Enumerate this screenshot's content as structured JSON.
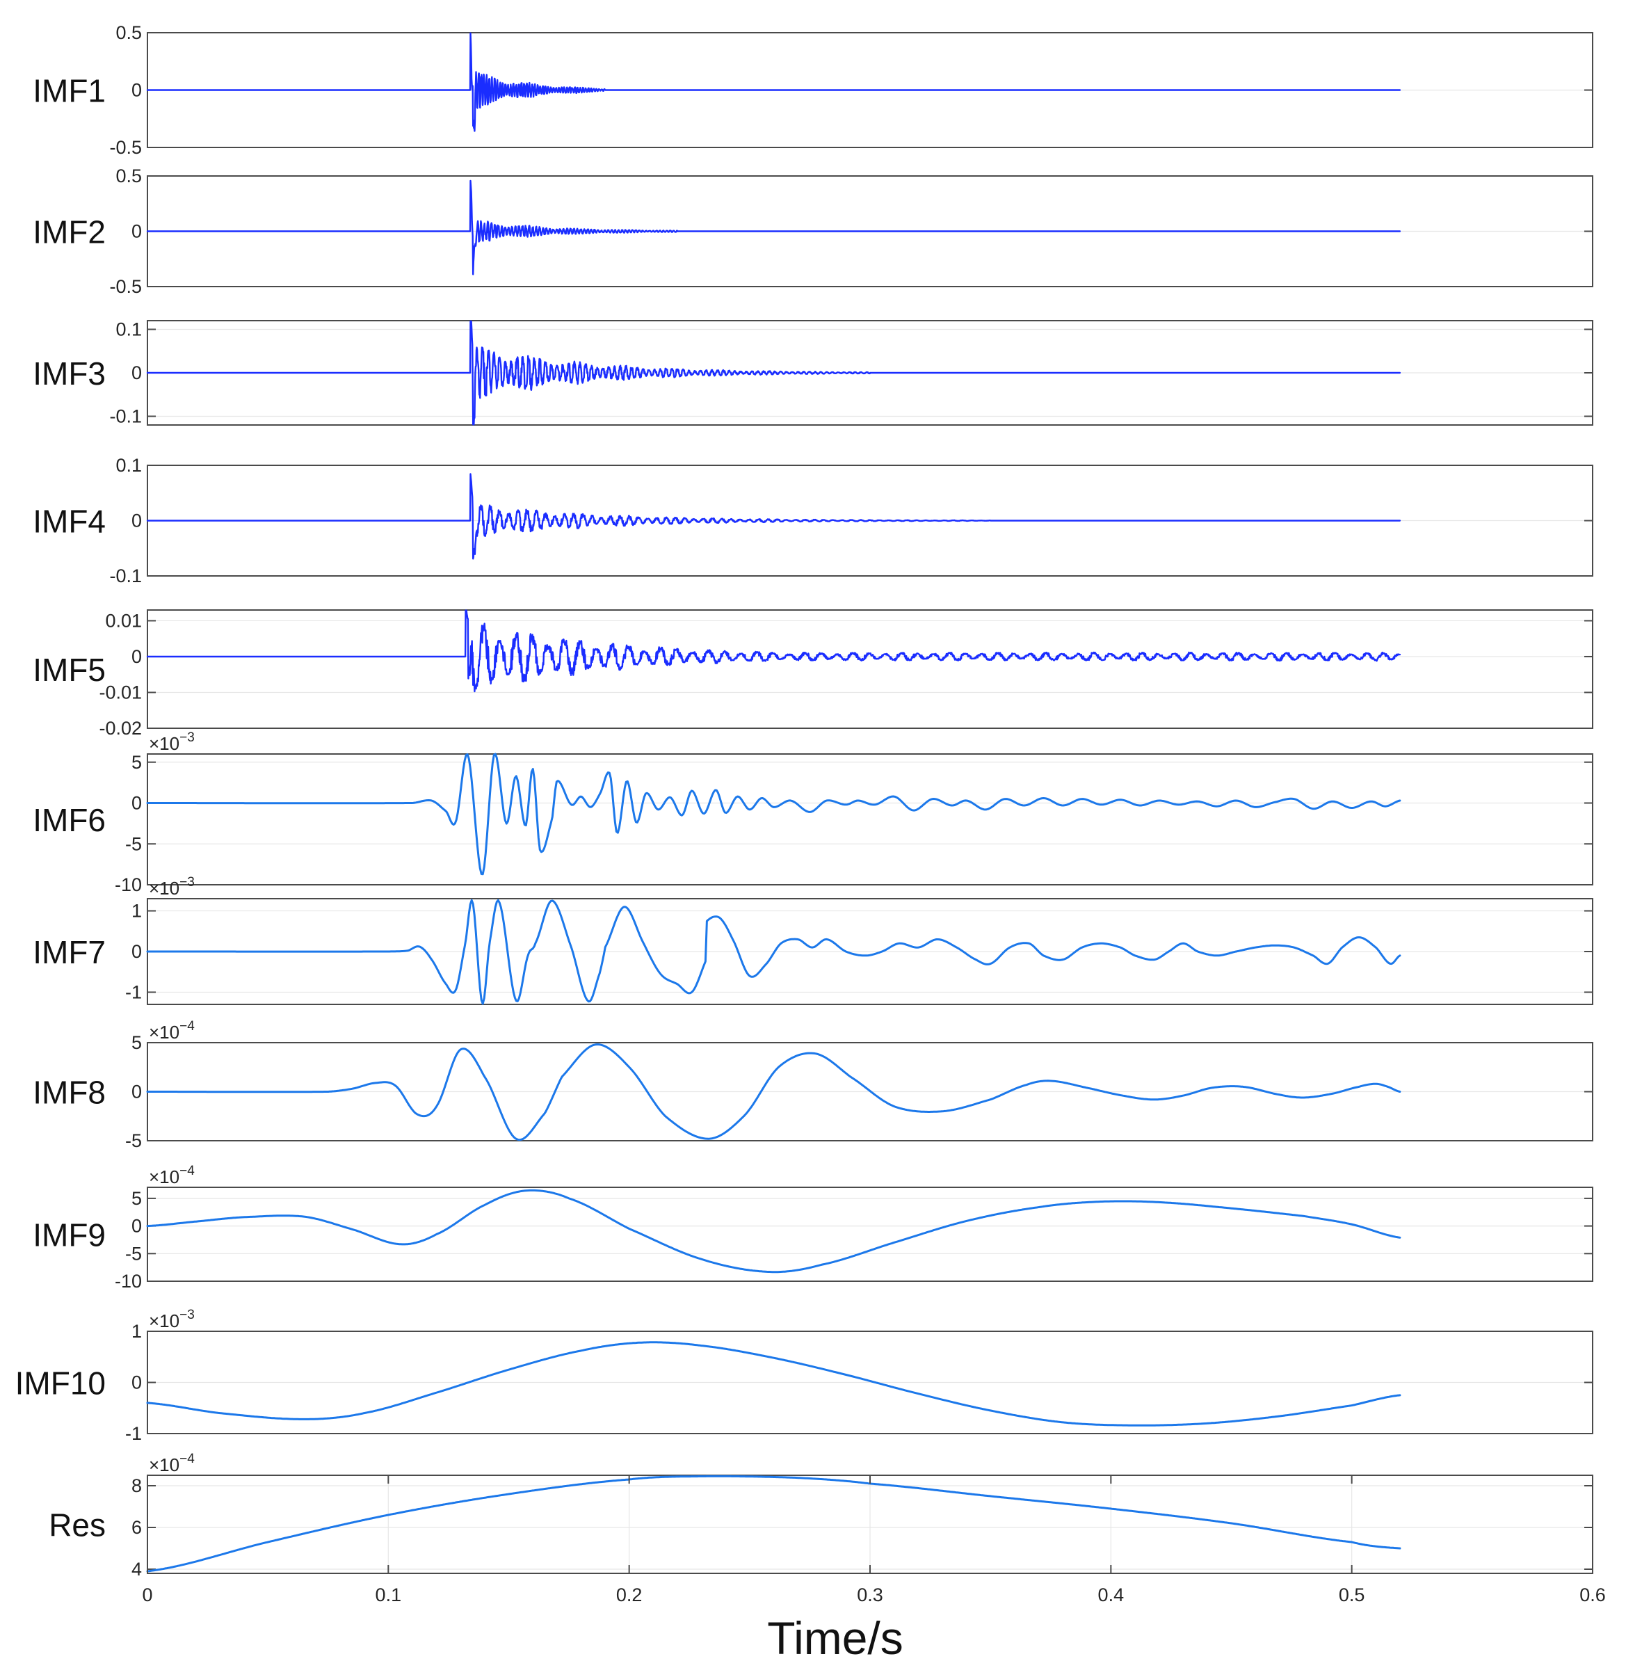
{
  "chart_data": {
    "type": "line",
    "x_unit_label": "Time/s",
    "xlim": [
      0,
      0.6
    ],
    "x_ticks": [
      "0",
      "0.1",
      "0.2",
      "0.3",
      "0.4",
      "0.5",
      "0.6"
    ],
    "x_tick_values": [
      0,
      0.1,
      0.2,
      0.3,
      0.4,
      0.5,
      0.6
    ],
    "colors": {
      "dense_trace": "#1a2dff",
      "smooth_trace": "#1c78ea",
      "frame": "#4a4a4a",
      "grid": "#e6e6e6"
    },
    "panels": [
      {
        "name": "IMF1",
        "ylim": [
          -0.5,
          0.5
        ],
        "yticks": [
          0.5,
          0,
          -0.5
        ],
        "ytick_labels": [
          "0.5",
          "0",
          "-0.5"
        ],
        "multiplier": "",
        "style": "dense",
        "signal": {
          "kind": "burst",
          "onset": 0.134,
          "decay": 0.022,
          "amp": 0.2,
          "freq": 900,
          "spike": 0.45,
          "spike_neg": -0.42,
          "tail_end": 0.19
        },
        "peak_at": 0.134,
        "peak_value": 0.45,
        "trough_value": -0.42
      },
      {
        "name": "IMF2",
        "ylim": [
          -0.5,
          0.5
        ],
        "yticks": [
          0.5,
          0,
          -0.5
        ],
        "ytick_labels": [
          "0.5",
          "0",
          "-0.5"
        ],
        "multiplier": "",
        "style": "dense",
        "signal": {
          "kind": "burst",
          "onset": 0.134,
          "decay": 0.03,
          "amp": 0.12,
          "freq": 700,
          "spike": 0.42,
          "spike_neg": -0.38,
          "tail_end": 0.22
        },
        "peak_at": 0.134,
        "peak_value": 0.42,
        "trough_value": -0.38
      },
      {
        "name": "IMF3",
        "ylim": [
          -0.12,
          0.12
        ],
        "yticks": [
          0.1,
          0,
          -0.1
        ],
        "ytick_labels": [
          "0.1",
          "0",
          "-0.1"
        ],
        "multiplier": "",
        "style": "dense",
        "signal": {
          "kind": "burst",
          "onset": 0.134,
          "decay": 0.045,
          "amp": 0.07,
          "freq": 420,
          "spike": 0.115,
          "spike_neg": -0.11,
          "tail_end": 0.3
        },
        "peak_at": 0.138,
        "peak_value": 0.115,
        "trough_value": -0.11
      },
      {
        "name": "IMF4",
        "ylim": [
          -0.1,
          0.1
        ],
        "yticks": [
          0.1,
          0,
          -0.1
        ],
        "ytick_labels": [
          "0.1",
          "0",
          "-0.1"
        ],
        "multiplier": "",
        "style": "dense",
        "signal": {
          "kind": "burst",
          "onset": 0.134,
          "decay": 0.05,
          "amp": 0.035,
          "freq": 260,
          "spike": 0.07,
          "spike_neg": -0.09,
          "tail_end": 0.35
        },
        "peak_at": 0.136,
        "peak_value": 0.07,
        "trough_value": -0.09
      },
      {
        "name": "IMF5",
        "ylim": [
          -0.02,
          0.013
        ],
        "yticks": [
          0.01,
          0,
          -0.01,
          -0.02
        ],
        "ytick_labels": [
          "0.01",
          "0",
          "-0.01",
          "-0.02"
        ],
        "multiplier": "",
        "style": "dense",
        "signal": {
          "kind": "burst",
          "onset": 0.132,
          "decay": 0.06,
          "amp": 0.011,
          "freq": 150,
          "spike": 0.013,
          "spike_neg": -0.015,
          "tail_end": 0.52,
          "floor": 0.0012
        },
        "peak_at": 0.134,
        "peak_value": 0.013,
        "trough_value": -0.015
      },
      {
        "name": "IMF6",
        "ylim": [
          -10,
          6
        ],
        "yticks": [
          5,
          0,
          -5,
          -10
        ],
        "ytick_labels": [
          "5",
          "0",
          "-5",
          "-10"
        ],
        "multiplier": "10^-3",
        "style": "smooth",
        "points": [
          [
            0,
            0
          ],
          [
            0.11,
            0
          ],
          [
            0.118,
            0.3
          ],
          [
            0.124,
            -1
          ],
          [
            0.128,
            -2.3
          ],
          [
            0.133,
            5.9
          ],
          [
            0.139,
            -8.8
          ],
          [
            0.144,
            6
          ],
          [
            0.149,
            -2.5
          ],
          [
            0.153,
            3.3
          ],
          [
            0.157,
            -2.8
          ],
          [
            0.16,
            4.2
          ],
          [
            0.163,
            -5.8
          ],
          [
            0.168,
            -2
          ],
          [
            0.17,
            2.7
          ],
          [
            0.176,
            -0.2
          ],
          [
            0.18,
            0.8
          ],
          [
            0.184,
            -0.5
          ],
          [
            0.188,
            1.2
          ],
          [
            0.192,
            3.6
          ],
          [
            0.195,
            -3.7
          ],
          [
            0.199,
            2.7
          ],
          [
            0.203,
            -2.4
          ],
          [
            0.207,
            1.2
          ],
          [
            0.212,
            -0.8
          ],
          [
            0.217,
            0.7
          ],
          [
            0.222,
            -1.5
          ],
          [
            0.226,
            1.5
          ],
          [
            0.231,
            -1.3
          ],
          [
            0.236,
            1.6
          ],
          [
            0.24,
            -1.2
          ],
          [
            0.245,
            0.8
          ],
          [
            0.25,
            -0.8
          ],
          [
            0.255,
            0.6
          ],
          [
            0.26,
            -0.5
          ],
          [
            0.267,
            0.3
          ],
          [
            0.275,
            -1.1
          ],
          [
            0.282,
            0.3
          ],
          [
            0.29,
            -0.2
          ],
          [
            0.295,
            0.3
          ],
          [
            0.302,
            -0.2
          ],
          [
            0.31,
            0.8
          ],
          [
            0.318,
            -0.9
          ],
          [
            0.326,
            0.5
          ],
          [
            0.334,
            -0.3
          ],
          [
            0.34,
            0.3
          ],
          [
            0.348,
            -0.8
          ],
          [
            0.356,
            0.5
          ],
          [
            0.364,
            -0.3
          ],
          [
            0.372,
            0.6
          ],
          [
            0.38,
            -0.3
          ],
          [
            0.388,
            0.5
          ],
          [
            0.396,
            -0.2
          ],
          [
            0.404,
            0.4
          ],
          [
            0.412,
            -0.3
          ],
          [
            0.42,
            0.3
          ],
          [
            0.428,
            -0.2
          ],
          [
            0.436,
            0.2
          ],
          [
            0.444,
            -0.4
          ],
          [
            0.452,
            0.3
          ],
          [
            0.46,
            -0.5
          ],
          [
            0.468,
            0.1
          ],
          [
            0.476,
            0.5
          ],
          [
            0.484,
            -0.7
          ],
          [
            0.492,
            0.2
          ],
          [
            0.5,
            -0.6
          ],
          [
            0.508,
            0.2
          ],
          [
            0.514,
            -0.4
          ],
          [
            0.52,
            0.3
          ]
        ]
      },
      {
        "name": "IMF7",
        "ylim": [
          -1.3,
          1.3
        ],
        "yticks": [
          1,
          0,
          -1
        ],
        "ytick_labels": [
          "1",
          "0",
          "-1"
        ],
        "multiplier": "10^-3",
        "style": "smooth",
        "points": [
          [
            0,
            0
          ],
          [
            0.1,
            0
          ],
          [
            0.108,
            0.02
          ],
          [
            0.113,
            0.12
          ],
          [
            0.118,
            -0.2
          ],
          [
            0.124,
            -0.8
          ],
          [
            0.128,
            -0.95
          ],
          [
            0.132,
            0.2
          ],
          [
            0.135,
            1.22
          ],
          [
            0.139,
            -1.27
          ],
          [
            0.142,
            0.2
          ],
          [
            0.146,
            1.22
          ],
          [
            0.153,
            -1.2
          ],
          [
            0.158,
            -0.1
          ],
          [
            0.161,
            0.2
          ],
          [
            0.168,
            1.25
          ],
          [
            0.176,
            0.1
          ],
          [
            0.183,
            -1.22
          ],
          [
            0.188,
            -0.5
          ],
          [
            0.19,
            0.1
          ],
          [
            0.198,
            1.1
          ],
          [
            0.206,
            0.2
          ],
          [
            0.213,
            -0.55
          ],
          [
            0.22,
            -0.8
          ],
          [
            0.226,
            -1
          ],
          [
            0.232,
            -0.2
          ],
          [
            0.23,
            0.6
          ],
          [
            0.237,
            0.85
          ],
          [
            0.243,
            0.3
          ],
          [
            0.25,
            -0.6
          ],
          [
            0.257,
            -0.3
          ],
          [
            0.263,
            0.2
          ],
          [
            0.27,
            0.3
          ],
          [
            0.276,
            0.1
          ],
          [
            0.282,
            0.3
          ],
          [
            0.29,
            0
          ],
          [
            0.298,
            -0.1
          ],
          [
            0.305,
            0
          ],
          [
            0.312,
            0.2
          ],
          [
            0.32,
            0.1
          ],
          [
            0.328,
            0.3
          ],
          [
            0.336,
            0.1
          ],
          [
            0.344,
            -0.2
          ],
          [
            0.35,
            -0.3
          ],
          [
            0.358,
            0.1
          ],
          [
            0.366,
            0.2
          ],
          [
            0.372,
            -0.1
          ],
          [
            0.38,
            -0.2
          ],
          [
            0.388,
            0.1
          ],
          [
            0.396,
            0.2
          ],
          [
            0.404,
            0.1
          ],
          [
            0.41,
            -0.1
          ],
          [
            0.418,
            -0.2
          ],
          [
            0.424,
            0
          ],
          [
            0.43,
            0.2
          ],
          [
            0.436,
            0
          ],
          [
            0.444,
            -0.1
          ],
          [
            0.452,
            0
          ],
          [
            0.46,
            0.1
          ],
          [
            0.468,
            0.15
          ],
          [
            0.476,
            0.1
          ],
          [
            0.484,
            -0.1
          ],
          [
            0.49,
            -0.3
          ],
          [
            0.496,
            0.1
          ],
          [
            0.503,
            0.35
          ],
          [
            0.51,
            0.1
          ],
          [
            0.516,
            -0.3
          ],
          [
            0.52,
            -0.1
          ]
        ]
      },
      {
        "name": "IMF8",
        "ylim": [
          -5,
          5
        ],
        "yticks": [
          5,
          0,
          -5
        ],
        "ytick_labels": [
          "5",
          "0",
          "-5"
        ],
        "multiplier": "10^-4",
        "style": "smooth",
        "points": [
          [
            0,
            0
          ],
          [
            0.075,
            0
          ],
          [
            0.085,
            0.3
          ],
          [
            0.095,
            0.9
          ],
          [
            0.103,
            0.6
          ],
          [
            0.112,
            -2.3
          ],
          [
            0.12,
            -1.5
          ],
          [
            0.13,
            4.3
          ],
          [
            0.14,
            1.5
          ],
          [
            0.153,
            -4.8
          ],
          [
            0.165,
            -2.2
          ],
          [
            0.172,
            1.5
          ],
          [
            0.186,
            4.8
          ],
          [
            0.2,
            2.5
          ],
          [
            0.215,
            -2.5
          ],
          [
            0.233,
            -4.8
          ],
          [
            0.248,
            -2.4
          ],
          [
            0.262,
            2.5
          ],
          [
            0.277,
            3.9
          ],
          [
            0.292,
            1.5
          ],
          [
            0.31,
            -1.5
          ],
          [
            0.33,
            -2
          ],
          [
            0.35,
            -0.8
          ],
          [
            0.365,
            0.7
          ],
          [
            0.375,
            1.1
          ],
          [
            0.39,
            0.4
          ],
          [
            0.405,
            -0.4
          ],
          [
            0.418,
            -0.8
          ],
          [
            0.43,
            -0.4
          ],
          [
            0.442,
            0.4
          ],
          [
            0.455,
            0.5
          ],
          [
            0.47,
            -0.3
          ],
          [
            0.48,
            -0.6
          ],
          [
            0.492,
            -0.2
          ],
          [
            0.503,
            0.5
          ],
          [
            0.51,
            0.8
          ],
          [
            0.515,
            0.5
          ],
          [
            0.52,
            0
          ]
        ]
      },
      {
        "name": "IMF9",
        "ylim": [
          -10,
          7
        ],
        "yticks": [
          5,
          0,
          -5,
          -10
        ],
        "ytick_labels": [
          "5",
          "0",
          "-5",
          "-10"
        ],
        "multiplier": "10^-4",
        "style": "smooth",
        "points": [
          [
            0,
            0
          ],
          [
            0.02,
            0.8
          ],
          [
            0.04,
            1.6
          ],
          [
            0.065,
            1.7
          ],
          [
            0.085,
            -0.6
          ],
          [
            0.105,
            -3.3
          ],
          [
            0.12,
            -1.5
          ],
          [
            0.14,
            3.8
          ],
          [
            0.157,
            6.4
          ],
          [
            0.175,
            5
          ],
          [
            0.2,
            -0.5
          ],
          [
            0.23,
            -6
          ],
          [
            0.258,
            -8.3
          ],
          [
            0.28,
            -7
          ],
          [
            0.31,
            -3
          ],
          [
            0.34,
            0.9
          ],
          [
            0.37,
            3.4
          ],
          [
            0.395,
            4.4
          ],
          [
            0.42,
            4.3
          ],
          [
            0.45,
            3.2
          ],
          [
            0.48,
            1.8
          ],
          [
            0.5,
            0.3
          ],
          [
            0.52,
            -2.1
          ]
        ]
      },
      {
        "name": "IMF10",
        "ylim": [
          -1,
          1
        ],
        "yticks": [
          1,
          0,
          -1
        ],
        "ytick_labels": [
          "1",
          "0",
          "-1"
        ],
        "multiplier": "10^-3",
        "style": "smooth",
        "points": [
          [
            0,
            -0.4
          ],
          [
            0.03,
            -0.6
          ],
          [
            0.065,
            -0.72
          ],
          [
            0.09,
            -0.6
          ],
          [
            0.12,
            -0.2
          ],
          [
            0.15,
            0.25
          ],
          [
            0.18,
            0.62
          ],
          [
            0.205,
            0.78
          ],
          [
            0.23,
            0.72
          ],
          [
            0.26,
            0.48
          ],
          [
            0.29,
            0.15
          ],
          [
            0.32,
            -0.22
          ],
          [
            0.35,
            -0.55
          ],
          [
            0.38,
            -0.78
          ],
          [
            0.41,
            -0.84
          ],
          [
            0.44,
            -0.8
          ],
          [
            0.47,
            -0.66
          ],
          [
            0.5,
            -0.45
          ],
          [
            0.52,
            -0.25
          ]
        ]
      },
      {
        "name": "Res",
        "ylim": [
          3.8,
          8.5
        ],
        "yticks": [
          8,
          6,
          4
        ],
        "ytick_labels": [
          "8",
          "6",
          "4"
        ],
        "multiplier": "10^-4",
        "style": "res",
        "points": [
          [
            0,
            3.9
          ],
          [
            0.05,
            5.3
          ],
          [
            0.1,
            6.6
          ],
          [
            0.15,
            7.6
          ],
          [
            0.2,
            8.3
          ],
          [
            0.23,
            8.45
          ],
          [
            0.27,
            8.38
          ],
          [
            0.3,
            8.1
          ],
          [
            0.35,
            7.5
          ],
          [
            0.4,
            6.9
          ],
          [
            0.45,
            6.2
          ],
          [
            0.5,
            5.3
          ],
          [
            0.52,
            5
          ]
        ]
      }
    ]
  }
}
